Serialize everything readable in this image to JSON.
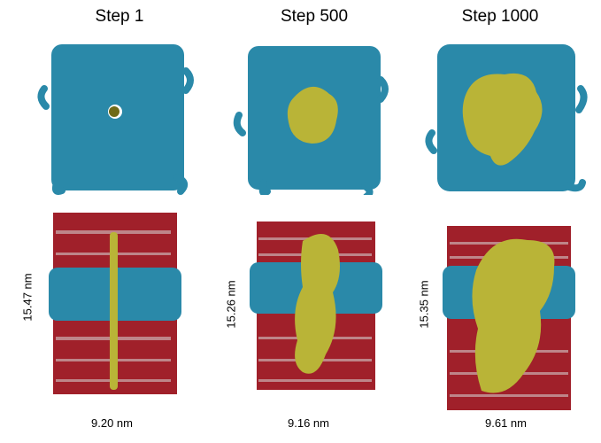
{
  "steps": [
    {
      "title": "Step 1",
      "height_label": "15.47 nm",
      "width_label": "9.20 nm"
    },
    {
      "title": "Step 500",
      "height_label": "15.26 nm",
      "width_label": "9.16 nm"
    },
    {
      "title": "Step 1000",
      "height_label": "15.35 nm",
      "width_label": "9.61 nm"
    }
  ],
  "colors": {
    "lipid": "#2a89a9",
    "pore": "#b9b437",
    "water_red": "#a0202a",
    "water_white": "#d8d8d8"
  }
}
